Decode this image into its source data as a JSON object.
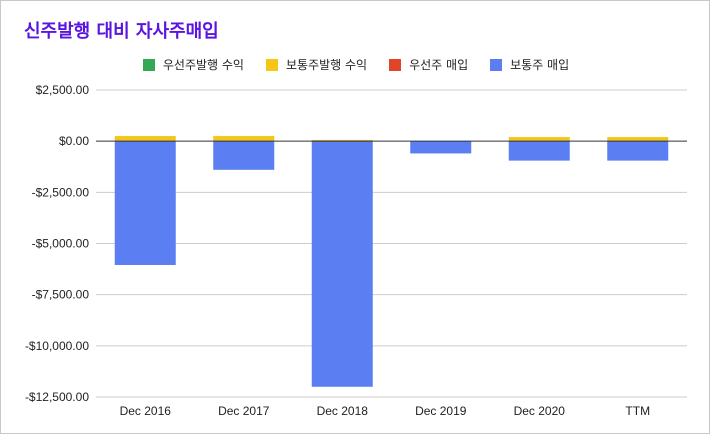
{
  "title": "신주발행 대비 자사주매입",
  "colors": {
    "title": "#5a16e0",
    "grid": "#cccccc",
    "zero_line": "#333333"
  },
  "chart_data": {
    "type": "bar",
    "stacked": true,
    "categories": [
      "Dec 2016",
      "Dec 2017",
      "Dec 2018",
      "Dec 2019",
      "Dec 2020",
      "TTM"
    ],
    "series": [
      {
        "name": "우선주발행 수익",
        "color": "#34a853",
        "values": [
          0,
          0,
          0,
          0,
          0,
          0
        ]
      },
      {
        "name": "보통주발행 수익",
        "color": "#f5c518",
        "values": [
          250,
          250,
          60,
          0,
          200,
          200
        ]
      },
      {
        "name": "우선주 매입",
        "color": "#e0452a",
        "values": [
          0,
          0,
          0,
          0,
          0,
          0
        ]
      },
      {
        "name": "보통주 매입",
        "color": "#5b7ff2",
        "values": [
          -6050,
          -1400,
          -12000,
          -600,
          -950,
          -950
        ]
      }
    ],
    "ylim": [
      -12500,
      2500
    ],
    "yticks": [
      2500,
      0,
      -2500,
      -5000,
      -7500,
      -10000,
      -12500
    ],
    "ytick_labels": [
      "$2,500.00",
      "$0.00",
      "-$2,500.00",
      "-$5,000.00",
      "-$7,500.00",
      "-$10,000.00",
      "-$12,500.00"
    ],
    "grid": true,
    "legend_position": "top"
  }
}
